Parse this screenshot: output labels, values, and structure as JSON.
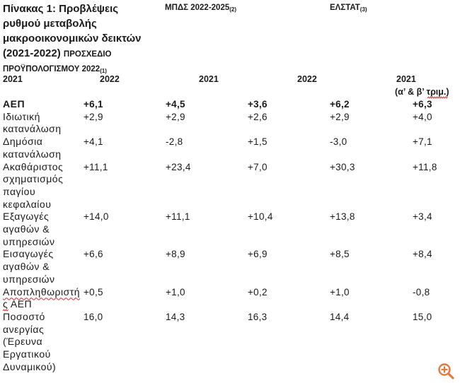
{
  "title": {
    "lines": [
      "Πίνακας 1: Προβλέψεις",
      "ρυθμού μεταβολής",
      "μακροοικονομικών δεικτών",
      "(2021-2022)"
    ],
    "draft_lines": [
      "ΠΡΟΣΧΕΔΙΟ",
      "ΠΡΟΫΠΟΛΟΓΙΣΜΟΥ 2022"
    ],
    "draft_note": "(1)"
  },
  "groups": [
    {
      "label": "ΜΠΔΣ 2022-2025",
      "note": "(2)"
    },
    {
      "label": "ΕΛΣΤΑΤ",
      "note": "(3)"
    }
  ],
  "years": [
    "2021",
    "2022",
    "2021",
    "2022",
    "2021"
  ],
  "years_last_note": "(α’ & β’ τριμ.)",
  "rows": [
    {
      "label": [
        "ΑΕΠ"
      ],
      "values": [
        "+6,1",
        "+4,5",
        "+3,6",
        "+6,2",
        "+6,3"
      ]
    },
    {
      "label": [
        "Ιδιωτική",
        "κατανάλωση"
      ],
      "values": [
        "+2,9",
        "+2,9",
        "+2,6",
        "+2,9",
        "+4,0"
      ]
    },
    {
      "label": [
        "Δημόσια",
        "κατανάλωση"
      ],
      "values": [
        "+4,1",
        "-2,8",
        "+1,5",
        "-3,0",
        "+7,1"
      ]
    },
    {
      "label": [
        "Ακαθάριστος",
        "σχηματισμός",
        "παγίου",
        "κεφαλαίου"
      ],
      "values": [
        "+11,1",
        "+23,4",
        "+7,0",
        "+30,3",
        "+11,8"
      ]
    },
    {
      "label": [
        "Εξαγωγές",
        "αγαθών &",
        "υπηρεσιών"
      ],
      "values": [
        "+14,0",
        "+11,1",
        "+10,4",
        "+13,8",
        "+3,4"
      ]
    },
    {
      "label": [
        "Εισαγωγές",
        "αγαθών &",
        "υπηρεσιών"
      ],
      "values": [
        "+6,6",
        "+8,9",
        "+6,9",
        "+8,5",
        "+8,4"
      ]
    },
    {
      "label": [
        "Αποπληθωριστή",
        "ς ΑΕΠ"
      ],
      "values": [
        "+0,5",
        "+1,0",
        "+0,2",
        "+1,0",
        "-0,8"
      ]
    },
    {
      "label": [
        "Ποσοστό",
        "ανεργίας",
        "(Έρευνα",
        "Εργατικού",
        "Δυναμικού)"
      ],
      "values": [
        "16,0",
        "14,3",
        "16,3",
        "14,4",
        "15,0"
      ]
    }
  ],
  "icons": {
    "zoom": "zoom-in-icon",
    "spellcheck": "spellcheck-underline"
  },
  "colors": {
    "text": "#1a1a1a",
    "accent": "#e8773a",
    "spellcheck": "#e02424"
  }
}
